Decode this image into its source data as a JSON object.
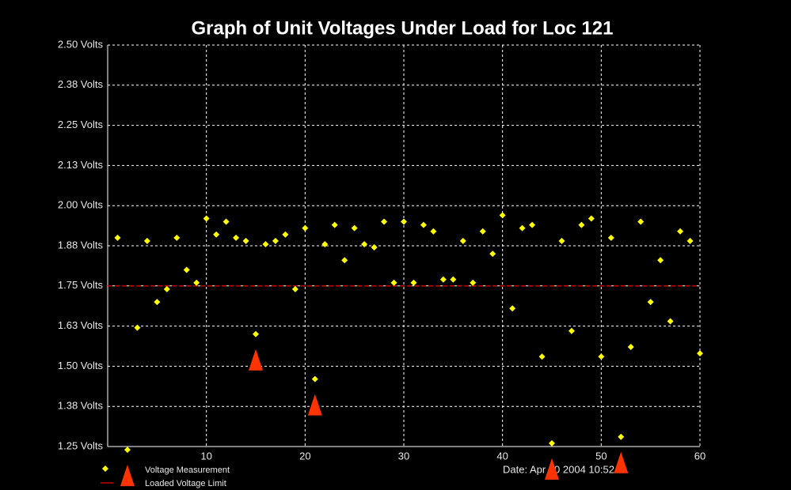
{
  "chart_data": {
    "type": "scatter",
    "title": "Graph of Unit Voltages Under Load for Loc 121",
    "date": "Date: Apr 30 2004 10:52",
    "x": [
      1,
      2,
      3,
      4,
      5,
      6,
      7,
      8,
      9,
      10,
      11,
      12,
      13,
      14,
      15,
      16,
      17,
      18,
      19,
      20,
      21,
      22,
      23,
      24,
      25,
      26,
      27,
      28,
      29,
      30,
      31,
      32,
      33,
      34,
      35,
      36,
      37,
      38,
      39,
      40,
      41,
      42,
      43,
      44,
      45,
      46,
      47,
      48,
      49,
      50,
      51,
      52,
      53,
      54,
      55,
      56,
      57,
      58,
      59,
      60
    ],
    "series": [
      {
        "name": "Voltage Measurement",
        "color": "#ffff00",
        "values": [
          1.9,
          1.24,
          1.62,
          1.89,
          1.7,
          1.74,
          1.9,
          1.8,
          1.76,
          1.96,
          1.91,
          1.95,
          1.9,
          1.89,
          1.6,
          1.88,
          1.89,
          1.91,
          1.74,
          1.93,
          1.46,
          1.88,
          1.94,
          1.83,
          1.93,
          1.88,
          1.87,
          1.95,
          1.76,
          1.95,
          1.76,
          1.94,
          1.92,
          1.77,
          1.77,
          1.89,
          1.76,
          1.92,
          1.85,
          1.97,
          1.68,
          1.93,
          1.94,
          1.53,
          1.26,
          1.89,
          1.61,
          1.94,
          1.96,
          1.53,
          1.9,
          1.28,
          1.56,
          1.95,
          1.7,
          1.83,
          1.64,
          1.92,
          1.89,
          1.54
        ]
      }
    ],
    "limit": {
      "name": "Loaded Voltage Limit",
      "value": 1.75,
      "color": "#cc0000"
    },
    "flagged": [
      2,
      15,
      21,
      45,
      52
    ],
    "flag_color": "#ff3300",
    "xlim": [
      0,
      60
    ],
    "xticks": [
      10,
      20,
      30,
      40,
      50,
      60
    ],
    "ylim": [
      1.25,
      2.5
    ],
    "yticks": [
      {
        "value": 1.25,
        "label": "1.25 Volts"
      },
      {
        "value": 1.375,
        "label": "1.38 Volts"
      },
      {
        "value": 1.5,
        "label": "1.50 Volts"
      },
      {
        "value": 1.625,
        "label": "1.63 Volts"
      },
      {
        "value": 1.75,
        "label": "1.75 Volts"
      },
      {
        "value": 1.875,
        "label": "1.88 Volts"
      },
      {
        "value": 2.0,
        "label": "2.00 Volts"
      },
      {
        "value": 2.125,
        "label": "2.13 Volts"
      },
      {
        "value": 2.25,
        "label": "2.25 Volts"
      },
      {
        "value": 2.375,
        "label": "2.38 Volts"
      },
      {
        "value": 2.5,
        "label": "2.50 Volts"
      }
    ],
    "grid": true
  }
}
